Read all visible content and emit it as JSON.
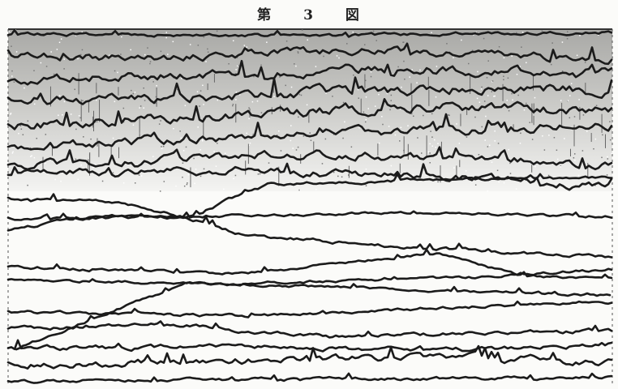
{
  "figure": {
    "title": "第　　3　　図"
  }
}
